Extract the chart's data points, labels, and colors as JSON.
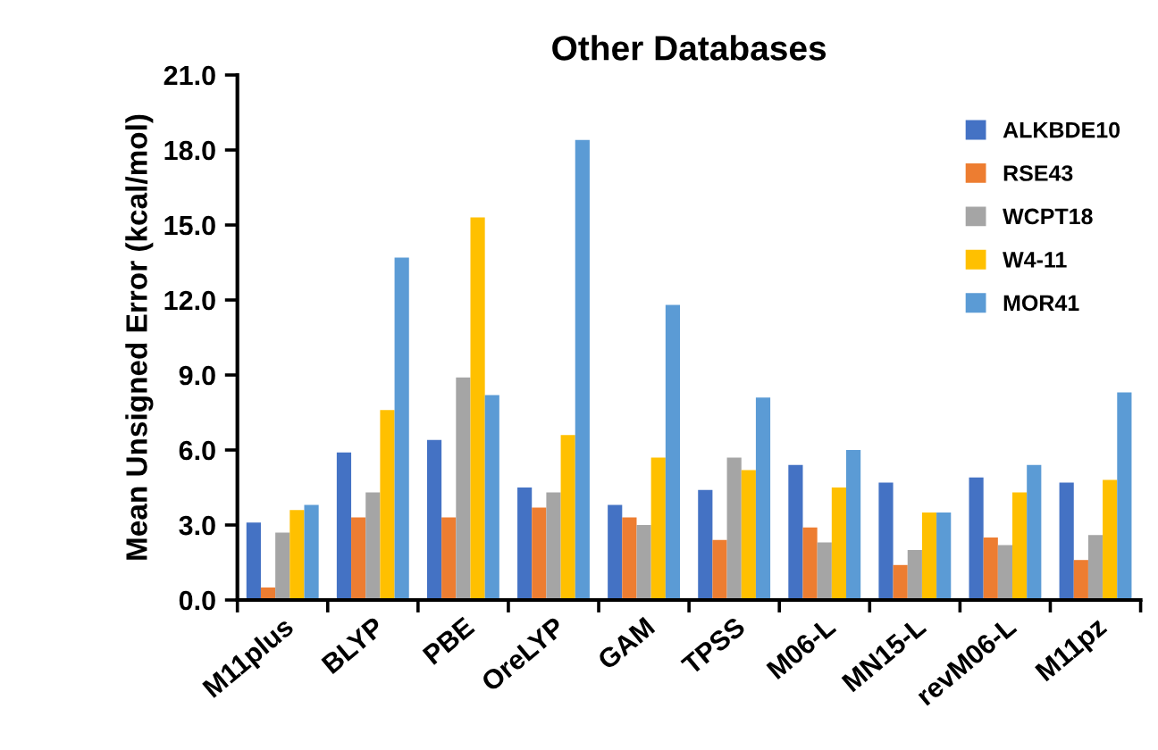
{
  "chart_data": {
    "type": "bar",
    "title": "Other Databases",
    "ylabel": "Mean Unsigned Error (kcal/mol)",
    "categories": [
      "M11plus",
      "BLYP",
      "PBE",
      "OreLYP",
      "GAM",
      "TPSS",
      "M06-L",
      "MN15-L",
      "revM06-L",
      "M11pz"
    ],
    "series": [
      {
        "name": "ALKBDE10",
        "color": "#4472c4",
        "values": [
          3.1,
          5.9,
          6.4,
          4.5,
          3.8,
          4.4,
          5.4,
          4.7,
          4.9,
          4.7
        ]
      },
      {
        "name": "RSE43",
        "color": "#ed7d31",
        "values": [
          0.5,
          3.3,
          3.3,
          3.7,
          3.3,
          2.4,
          2.9,
          1.4,
          2.5,
          1.6
        ]
      },
      {
        "name": "WCPT18",
        "color": "#a5a5a5",
        "values": [
          2.7,
          4.3,
          8.9,
          4.3,
          3.0,
          5.7,
          2.3,
          2.0,
          2.2,
          2.6
        ]
      },
      {
        "name": "W4-11",
        "color": "#ffc000",
        "values": [
          3.6,
          7.6,
          15.3,
          6.6,
          5.7,
          5.2,
          4.5,
          3.5,
          4.3,
          4.8
        ]
      },
      {
        "name": "MOR41",
        "color": "#5b9bd5",
        "values": [
          3.8,
          13.7,
          8.2,
          18.4,
          11.8,
          8.1,
          6.0,
          3.5,
          5.4,
          8.3
        ]
      }
    ],
    "ylim": [
      0,
      21
    ],
    "yticks": [
      {
        "value": 0,
        "label": "0.0"
      },
      {
        "value": 3,
        "label": "3.0"
      },
      {
        "value": 6,
        "label": "6.0"
      },
      {
        "value": 9,
        "label": "9.0"
      },
      {
        "value": 12,
        "label": "12.0"
      },
      {
        "value": 15,
        "label": "15.0"
      },
      {
        "value": 18,
        "label": "18.0"
      },
      {
        "value": 21,
        "label": "21.0"
      }
    ],
    "grid": false,
    "legend": "top right"
  }
}
